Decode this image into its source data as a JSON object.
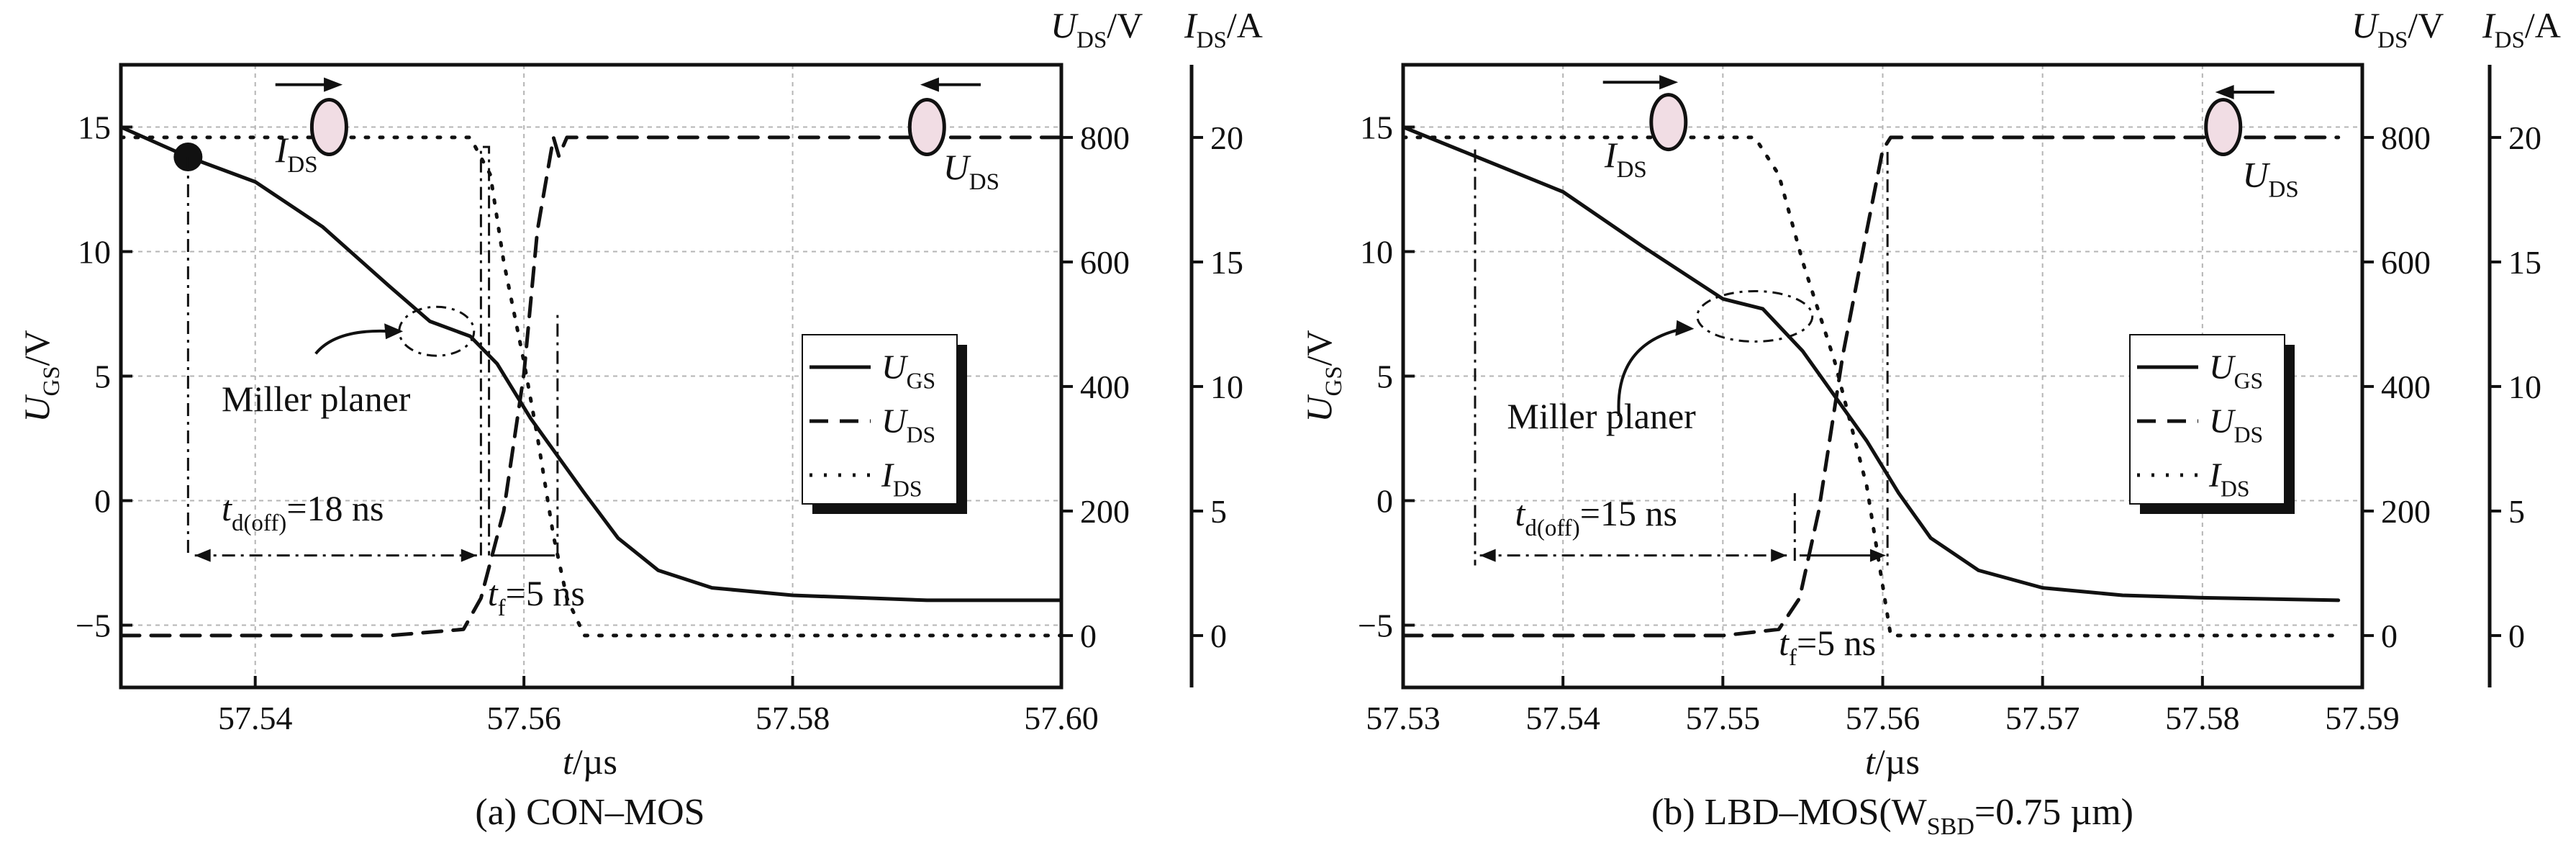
{
  "chart_data": [
    {
      "type": "line",
      "caption": "(a) CON–MOS",
      "xlabel": {
        "main": "t",
        "unit": "/µs"
      },
      "ylabel_left": {
        "main": "U",
        "sub": "GS",
        "unit": "/V"
      },
      "ylabel_right1": {
        "main": "U",
        "sub": "DS",
        "unit": "/V"
      },
      "ylabel_right2": {
        "main": "I",
        "sub": "DS",
        "unit": "/A"
      },
      "xlim": [
        57.53,
        57.6
      ],
      "xticks": [
        57.54,
        57.56,
        57.58,
        57.6
      ],
      "xtick_labels": [
        "57.54",
        "57.56",
        "57.58",
        "57.60"
      ],
      "ylim_left": [
        -7.5,
        17.5
      ],
      "yticks_left": [
        -5,
        0,
        5,
        10,
        15
      ],
      "ytick_labels_left": [
        "−5",
        "0",
        "5",
        "10",
        "15"
      ],
      "ylim_right1": [
        -83.33,
        916.67
      ],
      "yticks_right1": [
        0,
        200,
        400,
        600,
        800
      ],
      "ytick_labels_right1": [
        "0",
        "200",
        "400",
        "600",
        "800"
      ],
      "ylim_right2": [
        -2.083,
        22.917
      ],
      "yticks_right2": [
        0,
        5,
        10,
        15,
        20
      ],
      "ytick_labels_right2": [
        "0",
        "5",
        "10",
        "15",
        "20"
      ],
      "grid": true,
      "legend_position": "center-right",
      "series": [
        {
          "name": {
            "main": "U",
            "sub": "GS"
          },
          "style": "solid",
          "axis": "left",
          "x": [
            57.53,
            57.535,
            57.54,
            57.545,
            57.55,
            57.553,
            57.556,
            57.558,
            57.5605,
            57.5625,
            57.5645,
            57.567,
            57.57,
            57.574,
            57.58,
            57.59,
            57.6
          ],
          "y": [
            15.0,
            13.8,
            12.8,
            11.0,
            8.6,
            7.2,
            6.6,
            5.5,
            3.3,
            1.8,
            0.3,
            -1.5,
            -2.8,
            -3.5,
            -3.8,
            -4.0,
            -4.0
          ]
        },
        {
          "name": {
            "main": "U",
            "sub": "DS"
          },
          "style": "dashed",
          "axis": "right1",
          "x": [
            57.53,
            57.55,
            57.5555,
            57.5568,
            57.5585,
            57.56,
            57.561,
            57.5622,
            57.5626,
            57.5632,
            57.566,
            57.6
          ],
          "y": [
            0,
            0,
            10,
            60,
            200,
            420,
            650,
            800,
            770,
            800,
            800,
            800
          ]
        },
        {
          "name": {
            "main": "I",
            "sub": "DS"
          },
          "style": "dotted",
          "axis": "right2",
          "x": [
            57.53,
            57.556,
            57.5575,
            57.5585,
            57.56,
            57.561,
            57.5622,
            57.5632,
            57.5645,
            57.6
          ],
          "y": [
            20,
            20,
            18.5,
            15,
            11,
            8,
            4,
            1.5,
            0,
            0
          ]
        }
      ],
      "annotations": {
        "miller": "Miller planer",
        "td_main": "t",
        "td_sub": "d(off)",
        "td_value": "=18 ns",
        "tf_main": "t",
        "tf_sub": "f",
        "tf_value": "=5 ns",
        "probe_i_main": "I",
        "probe_i_sub": "DS",
        "probe_u_main": "U",
        "probe_u_sub": "DS"
      }
    },
    {
      "type": "line",
      "caption": "(b) LBD–MOS(W",
      "caption_sub": "SBD",
      "caption_tail": "=0.75 µm)",
      "xlabel": {
        "main": "t",
        "unit": "/µs"
      },
      "ylabel_left": {
        "main": "U",
        "sub": "GS",
        "unit": "/V"
      },
      "ylabel_right1": {
        "main": "U",
        "sub": "DS",
        "unit": "/V"
      },
      "ylabel_right2": {
        "main": "I",
        "sub": "DS",
        "unit": "/A"
      },
      "xlim": [
        57.53,
        57.59
      ],
      "xticks": [
        57.53,
        57.54,
        57.55,
        57.56,
        57.57,
        57.58,
        57.59
      ],
      "xtick_labels": [
        "57.53",
        "57.54",
        "57.55",
        "57.56",
        "57.57",
        "57.58",
        "57.59"
      ],
      "ylim_left": [
        -7.5,
        17.5
      ],
      "yticks_left": [
        -5,
        0,
        5,
        10,
        15
      ],
      "ytick_labels_left": [
        "−5",
        "0",
        "5",
        "10",
        "15"
      ],
      "ylim_right1": [
        -83.33,
        916.67
      ],
      "yticks_right1": [
        0,
        200,
        400,
        600,
        800
      ],
      "ytick_labels_right1": [
        "0",
        "200",
        "400",
        "600",
        "800"
      ],
      "ylim_right2": [
        -2.083,
        22.917
      ],
      "yticks_right2": [
        0,
        5,
        10,
        15,
        20
      ],
      "ytick_labels_right2": [
        "0",
        "5",
        "10",
        "15",
        "20"
      ],
      "grid": true,
      "legend_position": "center-right",
      "series": [
        {
          "name": {
            "main": "U",
            "sub": "GS"
          },
          "style": "solid",
          "axis": "left",
          "x": [
            57.53,
            57.535,
            57.54,
            57.545,
            57.55,
            57.5525,
            57.555,
            57.557,
            57.559,
            57.561,
            57.563,
            57.566,
            57.57,
            57.575,
            57.58,
            57.5885
          ],
          "y": [
            15.0,
            13.7,
            12.4,
            10.2,
            8.1,
            7.7,
            6.0,
            4.2,
            2.4,
            0.3,
            -1.5,
            -2.8,
            -3.5,
            -3.8,
            -3.9,
            -4.0
          ]
        },
        {
          "name": {
            "main": "U",
            "sub": "DS"
          },
          "style": "dashed",
          "axis": "right1",
          "x": [
            57.53,
            57.55,
            57.5535,
            57.5548,
            57.556,
            57.5575,
            57.559,
            57.56,
            57.5605,
            57.5885
          ],
          "y": [
            0,
            0,
            10,
            60,
            200,
            450,
            650,
            780,
            800,
            800
          ]
        },
        {
          "name": {
            "main": "I",
            "sub": "DS"
          },
          "style": "dotted",
          "axis": "right2",
          "x": [
            57.53,
            57.552,
            57.5535,
            57.555,
            57.557,
            57.559,
            57.56,
            57.5605,
            57.5885
          ],
          "y": [
            20,
            20,
            18.5,
            15,
            11,
            6,
            2,
            0,
            0
          ]
        }
      ],
      "annotations": {
        "miller": "Miller planer",
        "td_main": "t",
        "td_sub": "d(off)",
        "td_value": "=15 ns",
        "tf_main": "t",
        "tf_sub": "f",
        "tf_value": "=5 ns",
        "probe_i_main": "I",
        "probe_i_sub": "DS",
        "probe_u_main": "U",
        "probe_u_sub": "DS"
      }
    }
  ]
}
